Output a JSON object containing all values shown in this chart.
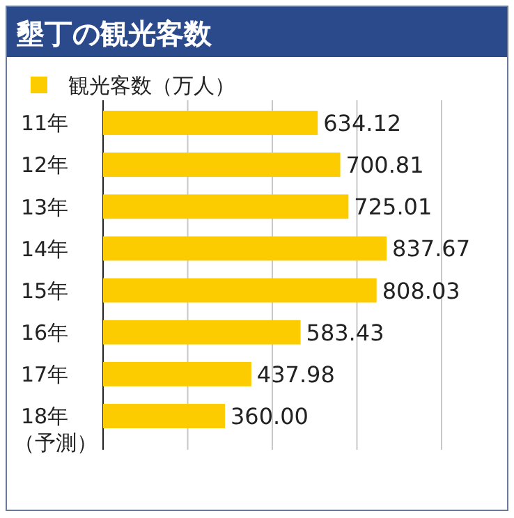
{
  "chart_data": {
    "type": "bar",
    "orientation": "horizontal",
    "title": "墾丁の観光客数",
    "categories": [
      "11年",
      "12年",
      "13年",
      "14年",
      "15年",
      "16年",
      "17年",
      "18年（予測）"
    ],
    "series": [
      {
        "name": "観光客数（万人）",
        "color": "#fccc00",
        "values": [
          634.12,
          700.81,
          725.01,
          837.67,
          808.03,
          583.43,
          437.98,
          360.0
        ],
        "value_labels": [
          "634.12",
          "700.81",
          "725.01",
          "837.67",
          "808.03",
          "583.43",
          "437.98",
          "360.00"
        ]
      }
    ],
    "xlim": [
      0,
      1000
    ],
    "xticks": [
      {
        "value": 0,
        "label": null
      },
      {
        "value": 250,
        "label": null
      },
      {
        "value": 500,
        "label": null
      },
      {
        "value": 750,
        "label": null
      },
      {
        "value": 1000,
        "label": null
      }
    ],
    "grid": "x",
    "tick_labels": "y",
    "legend": "top left"
  }
}
